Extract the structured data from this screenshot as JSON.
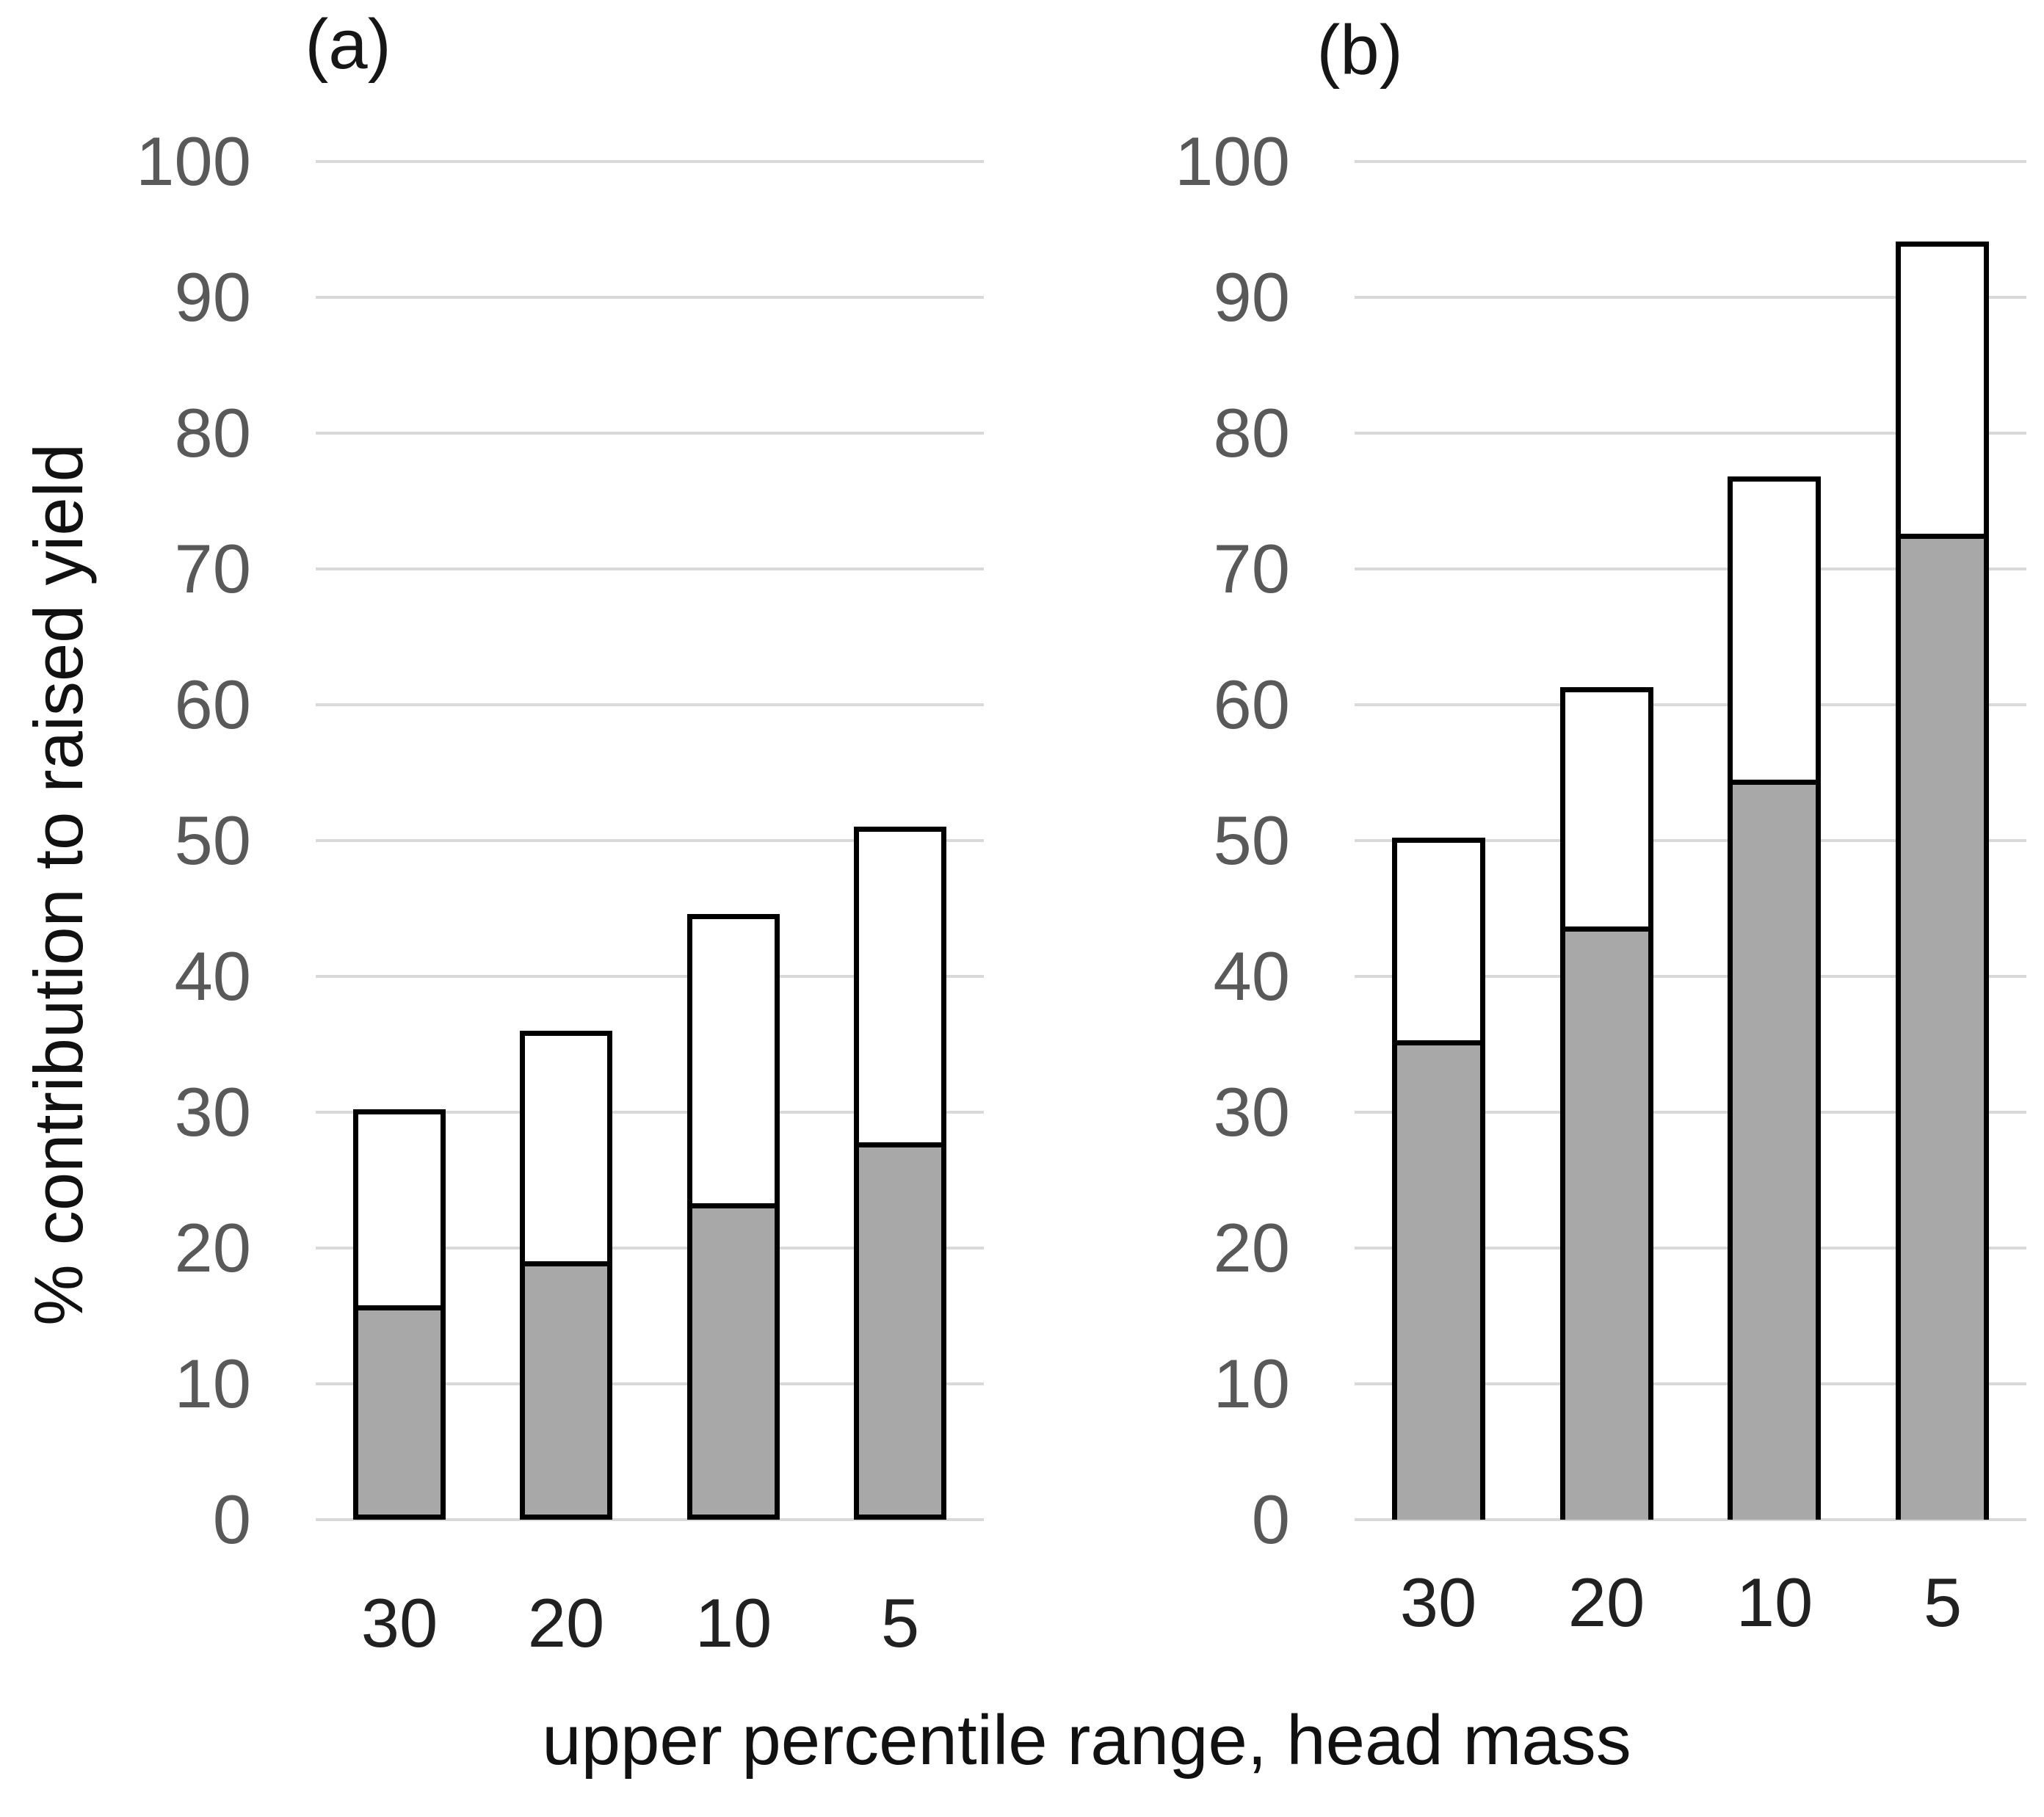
{
  "figure": {
    "x_axis_label": "upper percentile range, head mass",
    "y_axis_label": "% contribution to raised yield"
  },
  "colors": {
    "bar_fill_gray": "#a8a8a8",
    "bar_fill_white": "#ffffff",
    "bar_outline": "#000000",
    "gridline": "#d9d9d9",
    "y_tick_text": "#595959",
    "x_tick_text": "#212121"
  },
  "chart_data": [
    {
      "type": "bar",
      "stacked": true,
      "panel_label": "(a)",
      "categories": [
        "30",
        "20",
        "10",
        "5"
      ],
      "series": [
        {
          "name": "gray lower segment",
          "color": "#a8a8a8",
          "values": [
            15.8,
            19.0,
            23.3,
            27.8
          ]
        },
        {
          "name": "white upper segment",
          "color": "#ffffff",
          "values": [
            14.4,
            17.0,
            21.3,
            23.2
          ]
        }
      ],
      "totals": [
        30.2,
        36.0,
        44.6,
        51.0
      ],
      "title": "(a)",
      "xlabel": "upper percentile range, head mass",
      "ylabel": "% contribution to raised yield",
      "ylim": [
        0,
        100
      ],
      "yticks": [
        0,
        10,
        20,
        30,
        40,
        50,
        60,
        70,
        80,
        90,
        100
      ],
      "grid": true,
      "legend": "none"
    },
    {
      "type": "bar",
      "stacked": true,
      "panel_label": "(b)",
      "categories": [
        "30",
        "20",
        "10",
        "5"
      ],
      "series": [
        {
          "name": "gray lower segment",
          "color": "#a8a8a8",
          "values": [
            35.3,
            43.7,
            54.5,
            72.6
          ]
        },
        {
          "name": "white upper segment",
          "color": "#ffffff",
          "values": [
            14.9,
            17.6,
            22.3,
            21.5
          ]
        }
      ],
      "totals": [
        50.2,
        61.3,
        76.8,
        94.1
      ],
      "title": "(b)",
      "xlabel": "upper percentile range, head mass",
      "ylabel": "% contribution to raised yield",
      "ylim": [
        0,
        100
      ],
      "yticks": [
        0,
        10,
        20,
        30,
        40,
        50,
        60,
        70,
        80,
        90,
        100
      ],
      "grid": true,
      "legend": "none"
    }
  ]
}
